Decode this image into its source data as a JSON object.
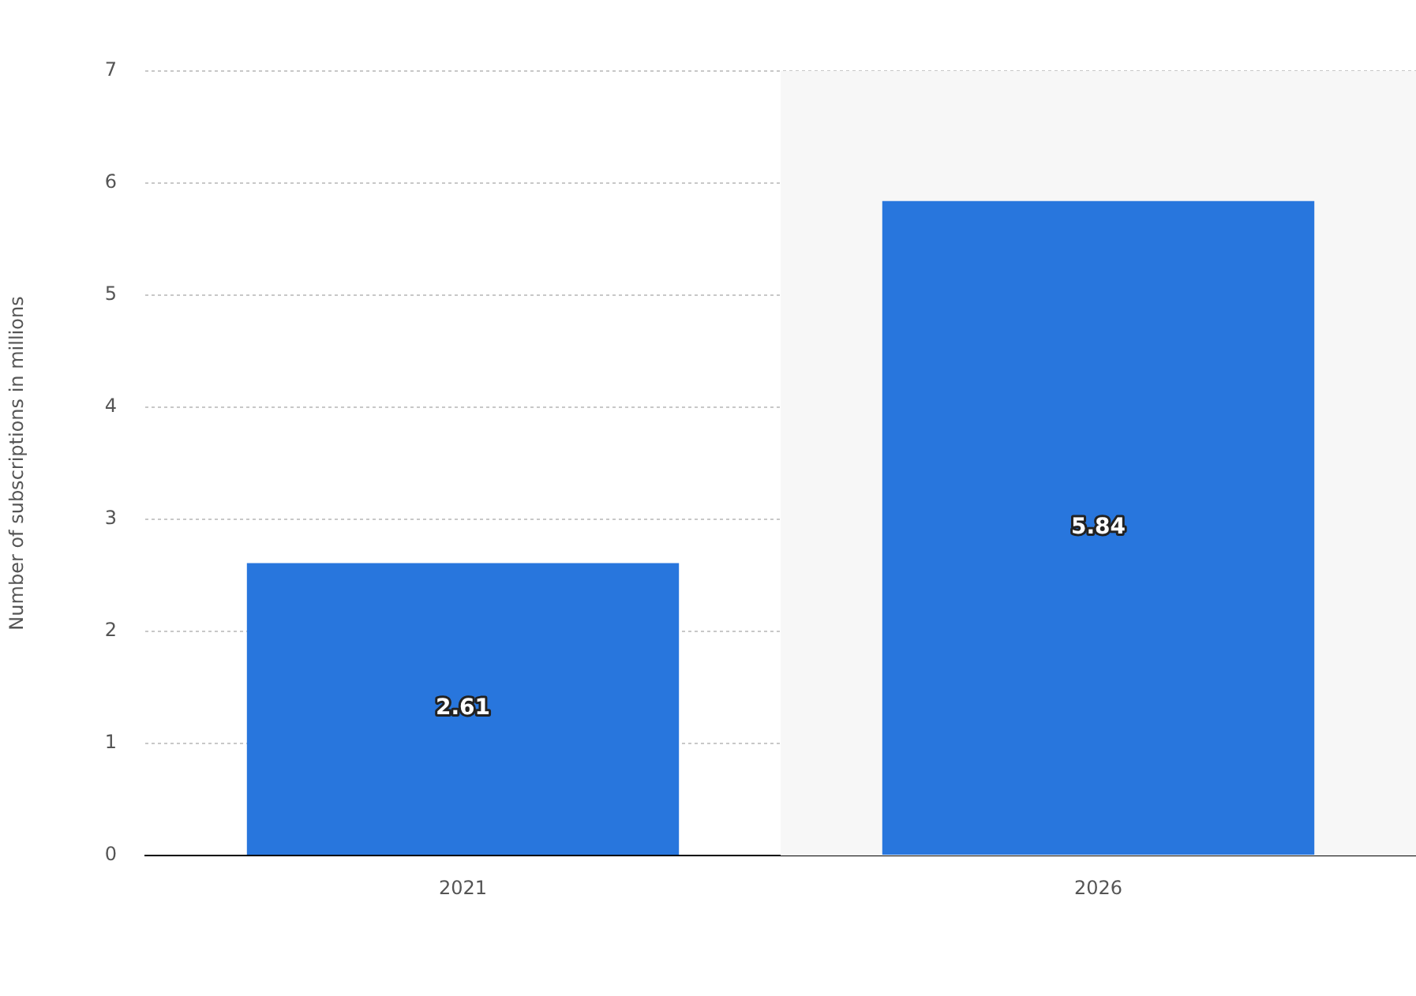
{
  "chart_data": {
    "type": "bar",
    "ylabel": "Number of subscriptions in millions",
    "categories": [
      "2021",
      "2026"
    ],
    "values": [
      2.61,
      5.84
    ],
    "color": "#2876dd",
    "ylim": [
      0,
      7
    ],
    "yticks": [
      0,
      1,
      2,
      3,
      4,
      5,
      6,
      7
    ],
    "grid": "y",
    "data_labels": true,
    "bands": [
      {
        "axis": "x",
        "from": "2026",
        "to": "2026",
        "color": "#f7f7f7"
      }
    ]
  }
}
